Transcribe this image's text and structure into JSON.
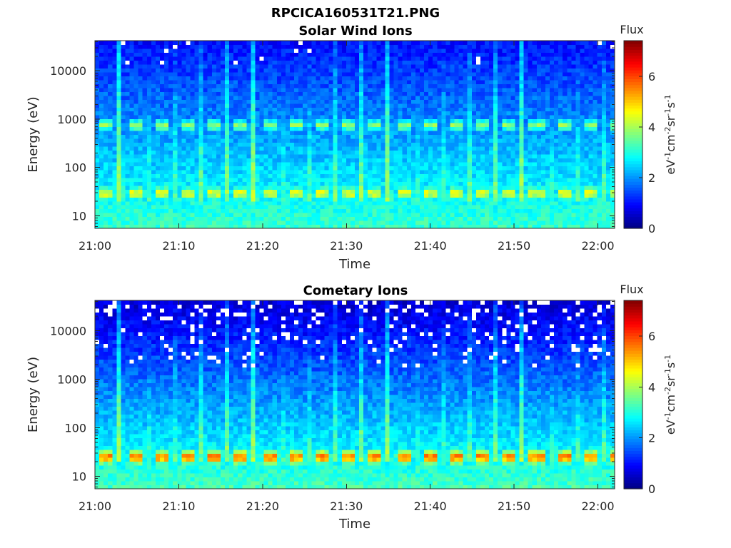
{
  "figure_title": "RPCICA160531T21.PNG",
  "chart_data": [
    {
      "type": "heatmap",
      "title": "Solar Wind Ions",
      "xlabel": "Time",
      "ylabel": "Energy (eV)",
      "x_ticks": [
        "21:00",
        "21:10",
        "21:20",
        "21:30",
        "21:40",
        "21:50",
        "22:00"
      ],
      "xlim_minutes": [
        0,
        62
      ],
      "y_scale": "log",
      "y_ticks": [
        "10",
        "100",
        "1000",
        "10000"
      ],
      "ylim_eV": [
        5.5,
        42000
      ],
      "colorbar": {
        "title": "Flux",
        "label": "eV-1cm-2sr-1s-1",
        "ticks": [
          "0",
          "2",
          "4",
          "6"
        ],
        "range": [
          0,
          7.4
        ],
        "colormap": "jet"
      },
      "sweep_period_minutes": 3.2,
      "bands": [
        {
          "energy_eV": 30,
          "flux": 4.8
        },
        {
          "energy_eV": 750,
          "flux": 3.9
        }
      ],
      "background_flux": {
        "low_energy": 3.2,
        "high_energy": 1.0
      },
      "missing_data": "sparse white gaps above 10000 eV"
    },
    {
      "type": "heatmap",
      "title": "Cometary Ions",
      "xlabel": "Time",
      "ylabel": "Energy (eV)",
      "x_ticks": [
        "21:00",
        "21:10",
        "21:20",
        "21:30",
        "21:40",
        "21:50",
        "22:00"
      ],
      "xlim_minutes": [
        0,
        62
      ],
      "y_scale": "log",
      "y_ticks": [
        "10",
        "100",
        "1000",
        "10000"
      ],
      "ylim_eV": [
        5.5,
        42000
      ],
      "colorbar": {
        "title": "Flux",
        "label": "eV-1cm-2sr-1s-1",
        "ticks": [
          "0",
          "2",
          "4",
          "6"
        ],
        "range": [
          0,
          7.4
        ],
        "colormap": "jet"
      },
      "sweep_period_minutes": 3.2,
      "bands": [
        {
          "energy_eV": 25,
          "flux": 6.0
        }
      ],
      "background_flux": {
        "low_energy": 3.3,
        "high_energy": 0.6
      },
      "missing_data": "frequent white gaps above 3000 eV"
    }
  ]
}
